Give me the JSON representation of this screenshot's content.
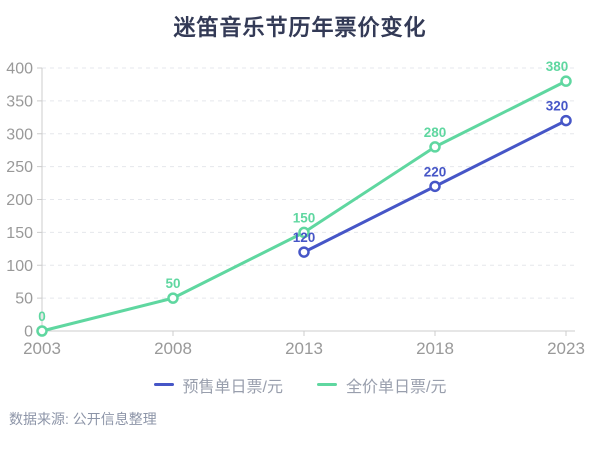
{
  "title": "迷笛音乐节历年票价变化",
  "source_note": "数据来源: 公开信息整理",
  "colors": {
    "title_text": "#333a56",
    "axis_line": "#cccccc",
    "axis_label": "#999999",
    "gridline": "#e5e7ec",
    "legend_text": "#999fad",
    "series_presale_blue": "#4656c7",
    "series_fullprice_green": "#5fd7a0",
    "background": "#ffffff"
  },
  "legend": {
    "items": [
      {
        "label": "预售单日票/元",
        "color": "#4656c7"
      },
      {
        "label": "全价单日票/元",
        "color": "#5fd7a0"
      }
    ]
  },
  "chart_data": {
    "type": "line",
    "title": "迷笛音乐节历年票价变化",
    "categories": [
      "2003",
      "2008",
      "2013",
      "2018",
      "2023"
    ],
    "series": [
      {
        "name": "全价单日票/元",
        "color": "#5fd7a0",
        "values": [
          0,
          50,
          150,
          280,
          380
        ]
      },
      {
        "name": "预售单日票/元",
        "color": "#4656c7",
        "values": [
          null,
          null,
          120,
          220,
          320
        ]
      }
    ],
    "xlabel": "",
    "ylabel": "",
    "ylim": [
      0,
      400
    ],
    "ytick_interval": 50,
    "grid": true,
    "grid_style": "dashed",
    "legend_position": "bottom",
    "marker": "hollow-circle",
    "data_labels": true
  }
}
